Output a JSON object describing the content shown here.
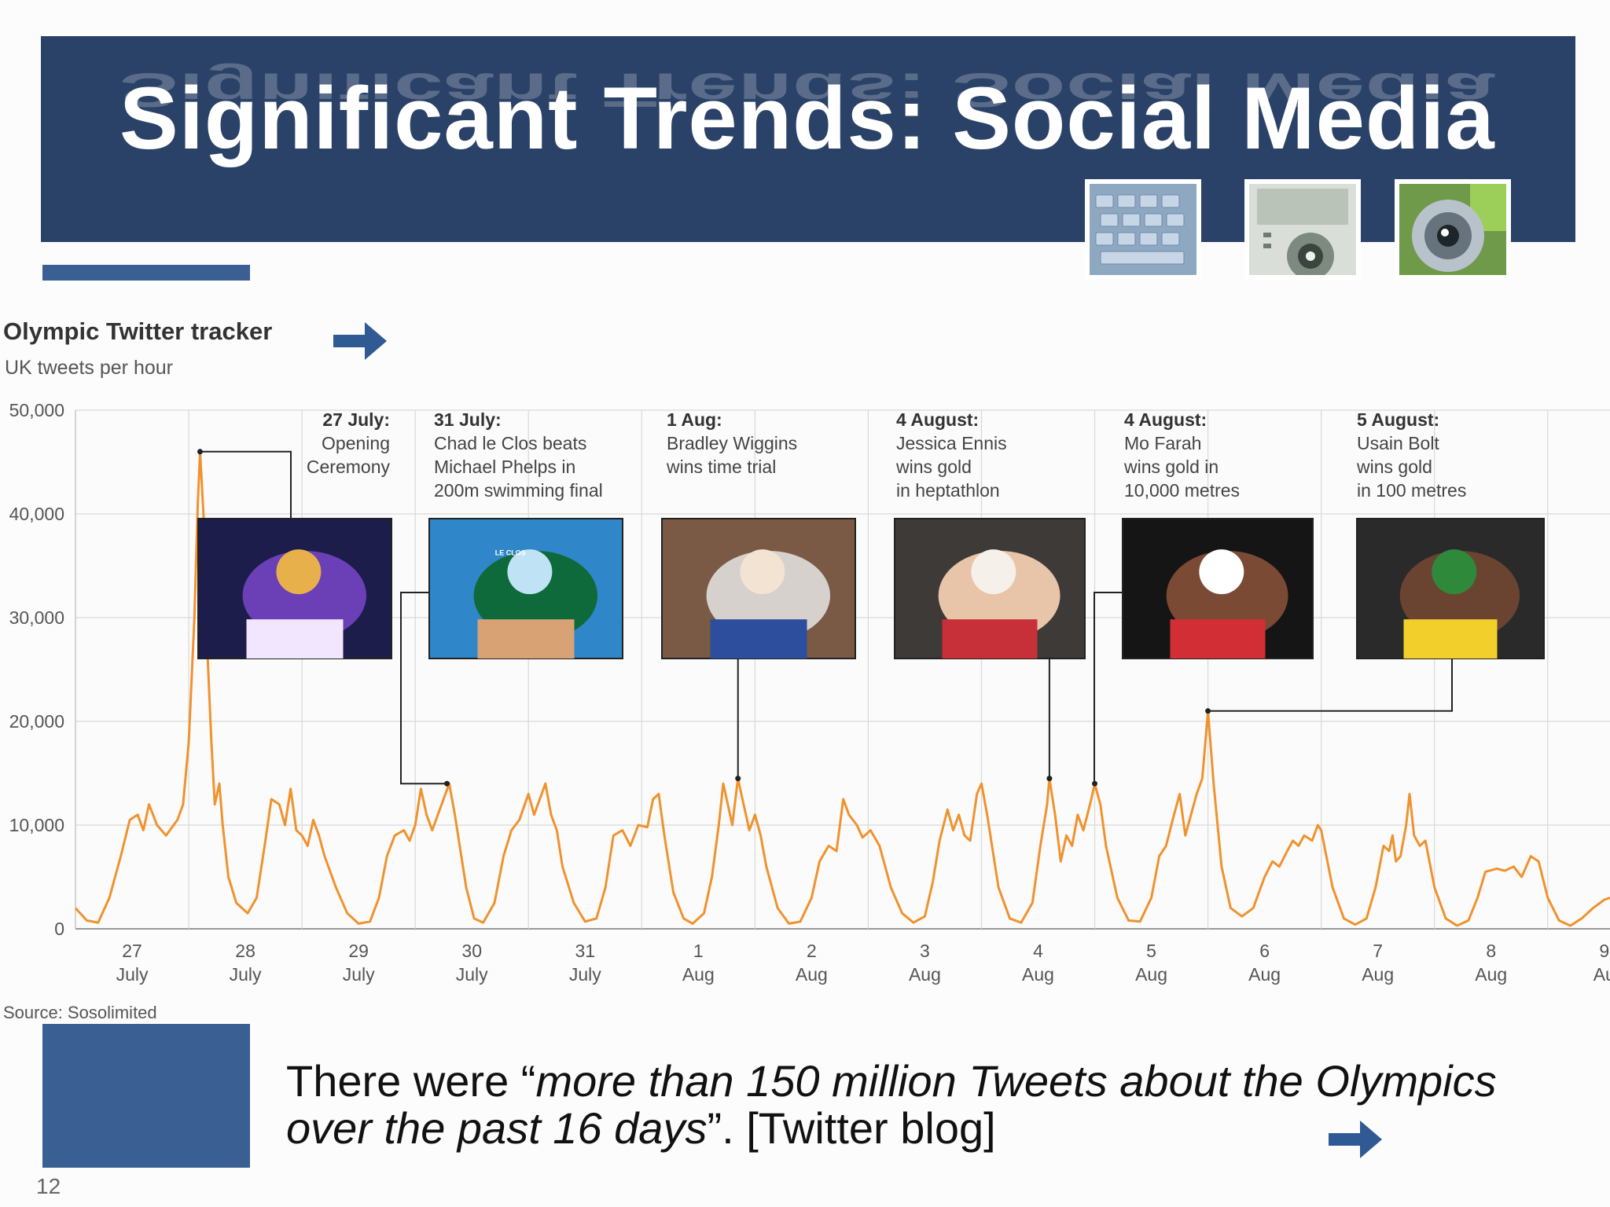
{
  "slide": {
    "title": "Significant Trends: Social Media",
    "quote_before": "There were “",
    "quote_italic": "more than 150 million Tweets about the Olympics over the past 16 days",
    "quote_after": "”.  [Twitter blog]",
    "page_number": "12"
  },
  "colors": {
    "banner": "#2b4268",
    "accent": "#3a5f92",
    "series_line": "#f0922e"
  },
  "icons": [
    "keyboard-thumbnail",
    "device-thumbnail",
    "camera-thumbnail",
    "arrow-right-icon"
  ],
  "chart_data": {
    "type": "line",
    "title": "Olympic Twitter tracker",
    "subtitle": "UK tweets per hour",
    "source": "Source: Sosolimited",
    "xlabel": "",
    "ylabel": "",
    "ylim": [
      0,
      50000
    ],
    "xlim": [
      0,
      13.55
    ],
    "grid": true,
    "y_ticks": [
      {
        "value": 0,
        "label": "0"
      },
      {
        "value": 10000,
        "label": "10,000"
      },
      {
        "value": 20000,
        "label": "20,000"
      },
      {
        "value": 30000,
        "label": "30,000"
      },
      {
        "value": 40000,
        "label": "40,000"
      },
      {
        "value": 50000,
        "label": "50,000"
      }
    ],
    "x_ticks": [
      {
        "x": 0.5,
        "day": "27",
        "month": "July"
      },
      {
        "x": 1.5,
        "day": "28",
        "month": "July"
      },
      {
        "x": 2.5,
        "day": "29",
        "month": "July"
      },
      {
        "x": 3.5,
        "day": "30",
        "month": "July"
      },
      {
        "x": 4.5,
        "day": "31",
        "month": "July"
      },
      {
        "x": 5.5,
        "day": "1",
        "month": "Aug"
      },
      {
        "x": 6.5,
        "day": "2",
        "month": "Aug"
      },
      {
        "x": 7.5,
        "day": "3",
        "month": "Aug"
      },
      {
        "x": 8.5,
        "day": "4",
        "month": "Aug"
      },
      {
        "x": 9.5,
        "day": "5",
        "month": "Aug"
      },
      {
        "x": 10.5,
        "day": "6",
        "month": "Aug"
      },
      {
        "x": 11.5,
        "day": "7",
        "month": "Aug"
      },
      {
        "x": 12.5,
        "day": "8",
        "month": "Aug"
      },
      {
        "x": 13.5,
        "day": "9",
        "month": "Au"
      }
    ],
    "x_gridlines": [
      1,
      2,
      3,
      4,
      5,
      6,
      7,
      8,
      9,
      10,
      11,
      12,
      13
    ],
    "series": [
      {
        "values": [
          [
            0.0,
            2000
          ],
          [
            0.1,
            800
          ],
          [
            0.2,
            600
          ],
          [
            0.3,
            3000
          ],
          [
            0.4,
            7000
          ],
          [
            0.48,
            10500
          ],
          [
            0.55,
            11000
          ],
          [
            0.6,
            9500
          ],
          [
            0.65,
            12000
          ],
          [
            0.72,
            10000
          ],
          [
            0.8,
            9000
          ],
          [
            0.9,
            10500
          ],
          [
            0.95,
            12000
          ],
          [
            1.0,
            18000
          ],
          [
            1.05,
            30000
          ],
          [
            1.08,
            41000
          ],
          [
            1.1,
            46000
          ],
          [
            1.13,
            40000
          ],
          [
            1.16,
            28000
          ],
          [
            1.2,
            18000
          ],
          [
            1.23,
            12000
          ],
          [
            1.27,
            14000
          ],
          [
            1.3,
            10000
          ],
          [
            1.35,
            5000
          ],
          [
            1.42,
            2500
          ],
          [
            1.52,
            1500
          ],
          [
            1.6,
            3000
          ],
          [
            1.67,
            8000
          ],
          [
            1.73,
            12500
          ],
          [
            1.8,
            12000
          ],
          [
            1.85,
            10000
          ],
          [
            1.9,
            13500
          ],
          [
            1.95,
            9500
          ],
          [
            2.0,
            9000
          ],
          [
            2.05,
            8000
          ],
          [
            2.1,
            10500
          ],
          [
            2.15,
            9000
          ],
          [
            2.2,
            7000
          ],
          [
            2.3,
            4000
          ],
          [
            2.4,
            1500
          ],
          [
            2.5,
            500
          ],
          [
            2.6,
            700
          ],
          [
            2.68,
            3000
          ],
          [
            2.75,
            7000
          ],
          [
            2.82,
            9000
          ],
          [
            2.9,
            9500
          ],
          [
            2.95,
            8500
          ],
          [
            3.0,
            10000
          ],
          [
            3.05,
            13500
          ],
          [
            3.1,
            11000
          ],
          [
            3.15,
            9500
          ],
          [
            3.2,
            11000
          ],
          [
            3.3,
            14000
          ],
          [
            3.35,
            11000
          ],
          [
            3.45,
            4000
          ],
          [
            3.52,
            1000
          ],
          [
            3.6,
            600
          ],
          [
            3.7,
            2500
          ],
          [
            3.78,
            7000
          ],
          [
            3.85,
            9500
          ],
          [
            3.92,
            10500
          ],
          [
            4.0,
            13000
          ],
          [
            4.05,
            11000
          ],
          [
            4.1,
            12500
          ],
          [
            4.15,
            14000
          ],
          [
            4.2,
            11000
          ],
          [
            4.25,
            9500
          ],
          [
            4.3,
            6000
          ],
          [
            4.4,
            2500
          ],
          [
            4.5,
            700
          ],
          [
            4.6,
            1000
          ],
          [
            4.68,
            4000
          ],
          [
            4.75,
            9000
          ],
          [
            4.83,
            9500
          ],
          [
            4.9,
            8000
          ],
          [
            4.97,
            10000
          ],
          [
            5.05,
            9800
          ],
          [
            5.1,
            12500
          ],
          [
            5.15,
            13000
          ],
          [
            5.2,
            9000
          ],
          [
            5.28,
            3500
          ],
          [
            5.37,
            1000
          ],
          [
            5.45,
            500
          ],
          [
            5.55,
            1500
          ],
          [
            5.62,
            5000
          ],
          [
            5.68,
            10000
          ],
          [
            5.72,
            14000
          ],
          [
            5.76,
            12000
          ],
          [
            5.8,
            10000
          ],
          [
            5.85,
            14500
          ],
          [
            5.9,
            12000
          ],
          [
            5.95,
            9500
          ],
          [
            6.0,
            11000
          ],
          [
            6.05,
            9000
          ],
          [
            6.1,
            6000
          ],
          [
            6.2,
            2000
          ],
          [
            6.3,
            500
          ],
          [
            6.4,
            700
          ],
          [
            6.5,
            3000
          ],
          [
            6.57,
            6500
          ],
          [
            6.65,
            8000
          ],
          [
            6.72,
            7500
          ],
          [
            6.78,
            12500
          ],
          [
            6.83,
            11000
          ],
          [
            6.9,
            10000
          ],
          [
            6.95,
            8800
          ],
          [
            7.02,
            9500
          ],
          [
            7.1,
            8000
          ],
          [
            7.2,
            4000
          ],
          [
            7.3,
            1500
          ],
          [
            7.4,
            600
          ],
          [
            7.5,
            1200
          ],
          [
            7.57,
            4500
          ],
          [
            7.63,
            8500
          ],
          [
            7.7,
            11500
          ],
          [
            7.75,
            9500
          ],
          [
            7.8,
            11000
          ],
          [
            7.85,
            9000
          ],
          [
            7.9,
            8500
          ],
          [
            7.96,
            13000
          ],
          [
            8.0,
            14000
          ],
          [
            8.05,
            11000
          ],
          [
            8.15,
            4000
          ],
          [
            8.25,
            1000
          ],
          [
            8.35,
            600
          ],
          [
            8.45,
            2500
          ],
          [
            8.52,
            8000
          ],
          [
            8.58,
            12000
          ],
          [
            8.6,
            14500
          ],
          [
            8.65,
            11000
          ],
          [
            8.7,
            6500
          ],
          [
            8.75,
            9000
          ],
          [
            8.8,
            8000
          ],
          [
            8.85,
            11000
          ],
          [
            8.9,
            9500
          ],
          [
            8.97,
            12500
          ],
          [
            9.0,
            14000
          ],
          [
            9.05,
            12000
          ],
          [
            9.1,
            8000
          ],
          [
            9.2,
            3000
          ],
          [
            9.3,
            800
          ],
          [
            9.4,
            700
          ],
          [
            9.5,
            3000
          ],
          [
            9.57,
            7000
          ],
          [
            9.63,
            8000
          ],
          [
            9.7,
            11000
          ],
          [
            9.75,
            13000
          ],
          [
            9.8,
            9000
          ],
          [
            9.85,
            11000
          ],
          [
            9.9,
            13000
          ],
          [
            9.95,
            14500
          ],
          [
            10.0,
            21000
          ],
          [
            10.05,
            14000
          ],
          [
            10.12,
            6000
          ],
          [
            10.2,
            2000
          ],
          [
            10.3,
            1200
          ],
          [
            10.4,
            2000
          ],
          [
            10.5,
            5000
          ],
          [
            10.57,
            6500
          ],
          [
            10.63,
            6000
          ],
          [
            10.7,
            7500
          ],
          [
            10.75,
            8500
          ],
          [
            10.8,
            8000
          ],
          [
            10.85,
            9000
          ],
          [
            10.92,
            8500
          ],
          [
            10.97,
            10000
          ],
          [
            11.0,
            9500
          ],
          [
            11.1,
            4000
          ],
          [
            11.2,
            1000
          ],
          [
            11.3,
            400
          ],
          [
            11.4,
            1000
          ],
          [
            11.48,
            4000
          ],
          [
            11.55,
            8000
          ],
          [
            11.6,
            7500
          ],
          [
            11.63,
            9000
          ],
          [
            11.66,
            6500
          ],
          [
            11.7,
            7000
          ],
          [
            11.75,
            10000
          ],
          [
            11.78,
            13000
          ],
          [
            11.82,
            9000
          ],
          [
            11.87,
            8000
          ],
          [
            11.92,
            8500
          ],
          [
            12.0,
            4000
          ],
          [
            12.1,
            1000
          ],
          [
            12.2,
            300
          ],
          [
            12.3,
            800
          ],
          [
            12.38,
            3000
          ],
          [
            12.45,
            5500
          ],
          [
            12.55,
            5800
          ],
          [
            12.62,
            5600
          ],
          [
            12.7,
            6000
          ],
          [
            12.77,
            5000
          ],
          [
            12.85,
            7000
          ],
          [
            12.92,
            6500
          ],
          [
            13.0,
            3000
          ],
          [
            13.1,
            800
          ],
          [
            13.2,
            300
          ],
          [
            13.3,
            1000
          ],
          [
            13.4,
            2000
          ],
          [
            13.5,
            2800
          ],
          [
            13.55,
            3000
          ]
        ]
      }
    ],
    "annotations": [
      {
        "x": 1.1,
        "y": 46000,
        "date": "27 July:",
        "lines": [
          "Opening",
          "Ceremony"
        ],
        "photo": "fireworks-stadium-photo"
      },
      {
        "x": 3.28,
        "y": 14000,
        "date": "31 July:",
        "lines": [
          "Chad le Clos beats",
          "Michael Phelps in",
          "200m swimming final"
        ],
        "photo": "swimmer-photo",
        "cap_text": "LE CLOS"
      },
      {
        "x": 5.85,
        "y": 14500,
        "date": "1 Aug:",
        "lines": [
          "Bradley Wiggins",
          "wins time trial"
        ],
        "photo": "cyclist-photo"
      },
      {
        "x": 8.6,
        "y": 14500,
        "date": "4 August:",
        "lines": [
          "Jessica Ennis",
          "wins gold",
          "in heptathlon"
        ],
        "photo": "heptathlete-photo"
      },
      {
        "x": 9.0,
        "y": 14000,
        "date": "4 August:",
        "lines": [
          "Mo Farah",
          "wins gold in",
          "10,000 metres"
        ],
        "photo": "runner-photo"
      },
      {
        "x": 10.0,
        "y": 21000,
        "date": "5 August:",
        "lines": [
          "Usain Bolt",
          "wins gold",
          "in 100 metres"
        ],
        "photo": "sprinter-photo"
      }
    ]
  }
}
